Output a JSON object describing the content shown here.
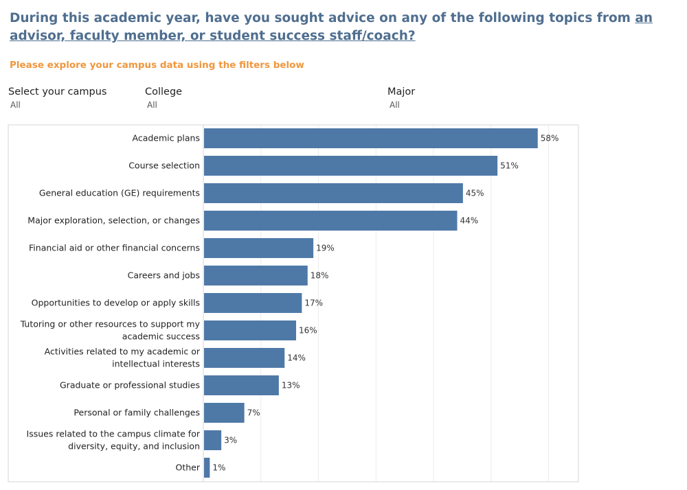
{
  "header": {
    "title_main": "During this academic year, have you sought advice on any of the following topics from ",
    "title_link": "an advisor, faculty member, or student success staff/coach?",
    "subtitle": "Please explore your campus data using the filters below"
  },
  "filters": {
    "campus": {
      "label": "Select your campus",
      "value": "All"
    },
    "college": {
      "label": "College",
      "value": "All"
    },
    "major": {
      "label": "Major",
      "value": "All"
    }
  },
  "colors": {
    "bar": "#4e79a7",
    "title": "#4f6e8f",
    "subtitle": "#f0963c"
  },
  "chart_data": {
    "type": "bar",
    "orientation": "horizontal",
    "categories": [
      [
        "Academic plans"
      ],
      [
        "Course selection"
      ],
      [
        "General education (GE) requirements"
      ],
      [
        "Major exploration, selection, or changes"
      ],
      [
        "Financial aid or other financial concerns"
      ],
      [
        "Careers and jobs"
      ],
      [
        "Opportunities to develop or apply skills"
      ],
      [
        "Tutoring or other resources to support my",
        "academic success"
      ],
      [
        "Activities related to my academic or",
        "intellectual interests"
      ],
      [
        "Graduate or professional studies"
      ],
      [
        "Personal or family challenges"
      ],
      [
        "Issues related to the campus climate for",
        "diversity, equity, and inclusion"
      ],
      [
        "Other"
      ]
    ],
    "values": [
      58,
      51,
      45,
      44,
      19,
      18,
      17,
      16,
      14,
      13,
      7,
      3,
      1
    ],
    "value_labels": [
      "58%",
      "51%",
      "45%",
      "44%",
      "19%",
      "18%",
      "17%",
      "16%",
      "14%",
      "13%",
      "7%",
      "3%",
      "1%"
    ],
    "xlim": [
      0,
      65
    ],
    "grid": true
  }
}
